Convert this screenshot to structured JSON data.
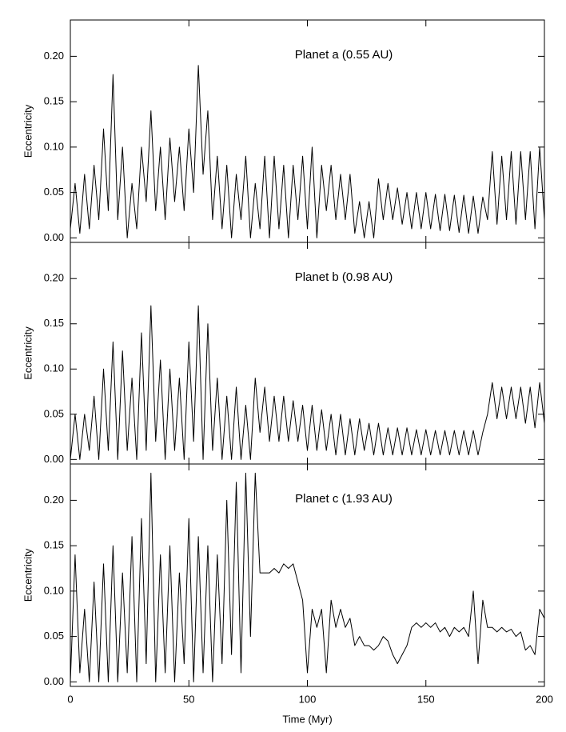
{
  "chart_data": [
    {
      "type": "line",
      "annotation": "Planet a (0.55 AU)",
      "ylabel": "Eccentricity",
      "color": "#000000",
      "xlim": [
        0,
        200
      ],
      "xticks": [
        0,
        50,
        100,
        150,
        200
      ],
      "show_xtick_labels": false,
      "ylim": [
        -0.005,
        0.24
      ],
      "yticks": [
        {
          "value": 0,
          "label": "0.00"
        },
        0.05,
        {
          "value": 0.1,
          "label": "0.10"
        },
        0.15,
        {
          "value": 0.2,
          "label": "0.20"
        }
      ],
      "x": [
        0,
        2,
        4,
        6,
        8,
        10,
        12,
        14,
        16,
        18,
        20,
        22,
        24,
        26,
        28,
        30,
        32,
        34,
        36,
        38,
        40,
        42,
        44,
        46,
        48,
        50,
        52,
        54,
        56,
        58,
        60,
        62,
        64,
        66,
        68,
        70,
        72,
        74,
        76,
        78,
        80,
        82,
        84,
        86,
        88,
        90,
        92,
        94,
        96,
        98,
        100,
        102,
        104,
        106,
        108,
        110,
        112,
        114,
        116,
        118,
        120,
        122,
        124,
        126,
        128,
        130,
        132,
        134,
        136,
        138,
        140,
        142,
        144,
        146,
        148,
        150,
        152,
        154,
        156,
        158,
        160,
        162,
        164,
        166,
        168,
        170,
        172,
        174,
        176,
        178,
        180,
        182,
        184,
        186,
        188,
        190,
        192,
        194,
        196,
        198,
        200
      ],
      "values": [
        0.01,
        0.06,
        0.005,
        0.07,
        0.01,
        0.08,
        0.02,
        0.12,
        0.03,
        0.18,
        0.02,
        0.1,
        0.0,
        0.06,
        0.01,
        0.1,
        0.04,
        0.14,
        0.03,
        0.1,
        0.02,
        0.11,
        0.04,
        0.1,
        0.03,
        0.12,
        0.05,
        0.19,
        0.07,
        0.14,
        0.02,
        0.09,
        0.01,
        0.08,
        0.0,
        0.07,
        0.02,
        0.09,
        0.0,
        0.06,
        0.01,
        0.09,
        0.0,
        0.09,
        0.01,
        0.08,
        0.0,
        0.08,
        0.02,
        0.09,
        0.01,
        0.1,
        0.0,
        0.08,
        0.03,
        0.08,
        0.02,
        0.07,
        0.02,
        0.07,
        0.005,
        0.04,
        0.0,
        0.04,
        0.0,
        0.065,
        0.02,
        0.06,
        0.02,
        0.055,
        0.015,
        0.05,
        0.01,
        0.05,
        0.01,
        0.05,
        0.01,
        0.048,
        0.008,
        0.048,
        0.008,
        0.047,
        0.006,
        0.047,
        0.005,
        0.046,
        0.005,
        0.045,
        0.02,
        0.095,
        0.015,
        0.09,
        0.02,
        0.095,
        0.015,
        0.095,
        0.02,
        0.095,
        0.01,
        0.1,
        0.02
      ]
    },
    {
      "type": "line",
      "annotation": "Planet b (0.98 AU)",
      "ylabel": "Eccentricity",
      "color": "#000000",
      "xlim": [
        0,
        200
      ],
      "xticks": [
        0,
        50,
        100,
        150,
        200
      ],
      "show_xtick_labels": false,
      "ylim": [
        -0.005,
        0.24
      ],
      "yticks": [
        {
          "value": 0,
          "label": "0.00"
        },
        0.05,
        {
          "value": 0.1,
          "label": "0.10"
        },
        0.15,
        {
          "value": 0.2,
          "label": "0.20"
        }
      ],
      "x": [
        0,
        2,
        4,
        6,
        8,
        10,
        12,
        14,
        16,
        18,
        20,
        22,
        24,
        26,
        28,
        30,
        32,
        34,
        36,
        38,
        40,
        42,
        44,
        46,
        48,
        50,
        52,
        54,
        56,
        58,
        60,
        62,
        64,
        66,
        68,
        70,
        72,
        74,
        76,
        78,
        80,
        82,
        84,
        86,
        88,
        90,
        92,
        94,
        96,
        98,
        100,
        102,
        104,
        106,
        108,
        110,
        112,
        114,
        116,
        118,
        120,
        122,
        124,
        126,
        128,
        130,
        132,
        134,
        136,
        138,
        140,
        142,
        144,
        146,
        148,
        150,
        152,
        154,
        156,
        158,
        160,
        162,
        164,
        166,
        168,
        170,
        172,
        174,
        176,
        178,
        180,
        182,
        184,
        186,
        188,
        190,
        192,
        194,
        196,
        198,
        200
      ],
      "values": [
        0.0,
        0.05,
        0.0,
        0.05,
        0.01,
        0.07,
        0.0,
        0.1,
        0.01,
        0.13,
        0.0,
        0.12,
        0.01,
        0.09,
        0.0,
        0.14,
        0.01,
        0.17,
        0.02,
        0.11,
        0.0,
        0.1,
        0.01,
        0.09,
        0.0,
        0.13,
        0.02,
        0.17,
        0.0,
        0.15,
        0.01,
        0.09,
        0.0,
        0.07,
        0.0,
        0.08,
        0.0,
        0.06,
        0.0,
        0.09,
        0.03,
        0.08,
        0.02,
        0.07,
        0.02,
        0.07,
        0.02,
        0.065,
        0.02,
        0.06,
        0.01,
        0.06,
        0.01,
        0.055,
        0.01,
        0.05,
        0.005,
        0.05,
        0.005,
        0.045,
        0.005,
        0.045,
        0.01,
        0.04,
        0.005,
        0.04,
        0.005,
        0.035,
        0.005,
        0.035,
        0.005,
        0.035,
        0.005,
        0.033,
        0.005,
        0.033,
        0.005,
        0.032,
        0.005,
        0.032,
        0.005,
        0.032,
        0.005,
        0.032,
        0.005,
        0.032,
        0.005,
        0.03,
        0.05,
        0.085,
        0.045,
        0.08,
        0.045,
        0.08,
        0.045,
        0.08,
        0.04,
        0.08,
        0.035,
        0.085,
        0.04
      ]
    },
    {
      "type": "line",
      "annotation": "Planet c (1.93 AU)",
      "ylabel": "Eccentricity",
      "xlabel": "Time (Myr)",
      "color": "#000000",
      "xlim": [
        0,
        200
      ],
      "xticks": [
        0,
        50,
        100,
        150,
        200
      ],
      "show_xtick_labels": true,
      "ylim": [
        -0.005,
        0.24
      ],
      "yticks": [
        {
          "value": 0,
          "label": "0.00"
        },
        0.05,
        {
          "value": 0.1,
          "label": "0.10"
        },
        0.15,
        {
          "value": 0.2,
          "label": "0.20"
        }
      ],
      "x": [
        0,
        2,
        4,
        6,
        8,
        10,
        12,
        14,
        16,
        18,
        20,
        22,
        24,
        26,
        28,
        30,
        32,
        34,
        36,
        38,
        40,
        42,
        44,
        46,
        48,
        50,
        52,
        54,
        56,
        58,
        60,
        62,
        64,
        66,
        68,
        70,
        72,
        74,
        76,
        78,
        80,
        82,
        84,
        86,
        88,
        90,
        92,
        94,
        96,
        98,
        100,
        102,
        104,
        106,
        108,
        110,
        112,
        114,
        116,
        118,
        120,
        122,
        124,
        126,
        128,
        130,
        132,
        134,
        136,
        138,
        140,
        142,
        144,
        146,
        148,
        150,
        152,
        154,
        156,
        158,
        160,
        162,
        164,
        166,
        168,
        170,
        172,
        174,
        176,
        178,
        180,
        182,
        184,
        186,
        188,
        190,
        192,
        194,
        196,
        198,
        200
      ],
      "values": [
        0.0,
        0.14,
        0.01,
        0.08,
        0.0,
        0.11,
        0.0,
        0.13,
        0.0,
        0.15,
        0.0,
        0.12,
        0.01,
        0.16,
        0.0,
        0.18,
        0.02,
        0.23,
        0.0,
        0.14,
        0.01,
        0.15,
        0.0,
        0.12,
        0.02,
        0.18,
        0.0,
        0.16,
        0.01,
        0.15,
        0.0,
        0.14,
        0.02,
        0.2,
        0.03,
        0.22,
        0.01,
        0.23,
        0.05,
        0.23,
        0.12,
        0.12,
        0.12,
        0.125,
        0.12,
        0.13,
        0.125,
        0.13,
        0.11,
        0.09,
        0.01,
        0.08,
        0.06,
        0.08,
        0.01,
        0.09,
        0.06,
        0.08,
        0.06,
        0.07,
        0.04,
        0.05,
        0.04,
        0.04,
        0.035,
        0.04,
        0.05,
        0.045,
        0.03,
        0.02,
        0.03,
        0.04,
        0.06,
        0.065,
        0.06,
        0.065,
        0.06,
        0.065,
        0.055,
        0.06,
        0.05,
        0.06,
        0.055,
        0.06,
        0.05,
        0.1,
        0.02,
        0.09,
        0.06,
        0.06,
        0.055,
        0.06,
        0.055,
        0.058,
        0.05,
        0.055,
        0.035,
        0.04,
        0.03,
        0.08,
        0.07
      ]
    }
  ]
}
